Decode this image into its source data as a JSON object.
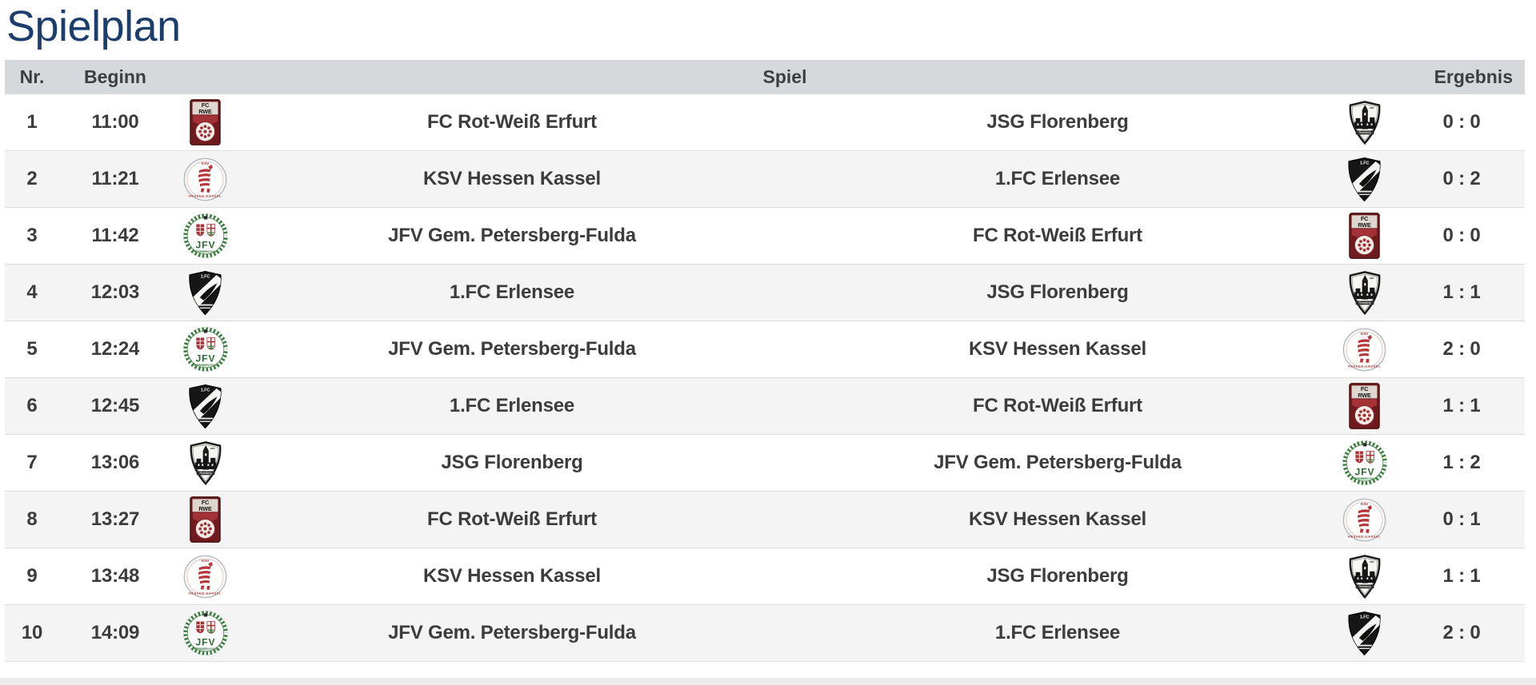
{
  "page": {
    "title": "Spielplan"
  },
  "colors": {
    "title_text": "#1c3e6e",
    "header_bg": "#d6d9dc",
    "header_text": "#3e3e3e",
    "body_text": "#3c3c3c",
    "row_bg": "#ffffff",
    "row_alt_bg": "#f4f4f4",
    "row_border": "#dcdcdc",
    "bottom_strip_bg": "#ececec"
  },
  "table": {
    "headers": {
      "nr": "Nr.",
      "beginn": "Beginn",
      "spiel": "Spiel",
      "ergebnis": "Ergebnis"
    },
    "matches": [
      {
        "nr": "1",
        "beginn": "11:00",
        "home": "FC Rot-Weiß Erfurt",
        "home_logo": "fc-rot-weiss-erfurt-logo",
        "away": "JSG Florenberg",
        "away_logo": "jsg-florenberg-logo",
        "ergebnis": "0 : 0"
      },
      {
        "nr": "2",
        "beginn": "11:21",
        "home": "KSV Hessen Kassel",
        "home_logo": "ksv-hessen-kassel-logo",
        "away": "1.FC Erlensee",
        "away_logo": "fc-erlensee-logo",
        "ergebnis": "0 : 2"
      },
      {
        "nr": "3",
        "beginn": "11:42",
        "home": "JFV Gem. Petersberg-Fulda",
        "home_logo": "jfv-petersberg-fulda-logo",
        "away": "FC Rot-Weiß Erfurt",
        "away_logo": "fc-rot-weiss-erfurt-logo",
        "ergebnis": "0 : 0"
      },
      {
        "nr": "4",
        "beginn": "12:03",
        "home": "1.FC Erlensee",
        "home_logo": "fc-erlensee-logo",
        "away": "JSG Florenberg",
        "away_logo": "jsg-florenberg-logo",
        "ergebnis": "1 : 1"
      },
      {
        "nr": "5",
        "beginn": "12:24",
        "home": "JFV Gem. Petersberg-Fulda",
        "home_logo": "jfv-petersberg-fulda-logo",
        "away": "KSV Hessen Kassel",
        "away_logo": "ksv-hessen-kassel-logo",
        "ergebnis": "2 : 0"
      },
      {
        "nr": "6",
        "beginn": "12:45",
        "home": "1.FC Erlensee",
        "home_logo": "fc-erlensee-logo",
        "away": "FC Rot-Weiß Erfurt",
        "away_logo": "fc-rot-weiss-erfurt-logo",
        "ergebnis": "1 : 1"
      },
      {
        "nr": "7",
        "beginn": "13:06",
        "home": "JSG Florenberg",
        "home_logo": "jsg-florenberg-logo",
        "away": "JFV Gem. Petersberg-Fulda",
        "away_logo": "jfv-petersberg-fulda-logo",
        "ergebnis": "1 : 2"
      },
      {
        "nr": "8",
        "beginn": "13:27",
        "home": "FC Rot-Weiß Erfurt",
        "home_logo": "fc-rot-weiss-erfurt-logo",
        "away": "KSV Hessen Kassel",
        "away_logo": "ksv-hessen-kassel-logo",
        "ergebnis": "0 : 1"
      },
      {
        "nr": "9",
        "beginn": "13:48",
        "home": "KSV Hessen Kassel",
        "home_logo": "ksv-hessen-kassel-logo",
        "away": "JSG Florenberg",
        "away_logo": "jsg-florenberg-logo",
        "ergebnis": "1 : 1"
      },
      {
        "nr": "10",
        "beginn": "14:09",
        "home": "JFV Gem. Petersberg-Fulda",
        "home_logo": "jfv-petersberg-fulda-logo",
        "away": "1.FC Erlensee",
        "away_logo": "fc-erlensee-logo",
        "ergebnis": "2 : 0"
      }
    ]
  }
}
